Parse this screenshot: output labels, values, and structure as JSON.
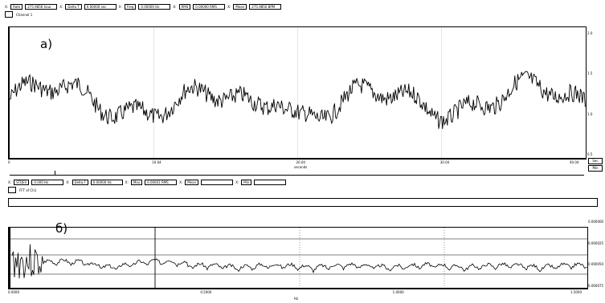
{
  "top_toolbar": {
    "fields": [
      {
        "label": "X:",
        "name": "Rate",
        "value": "275.9856 hour"
      },
      {
        "label": "X:",
        "name": "Delta T",
        "value": "0.00000 sec"
      },
      {
        "label": "X:",
        "name": "Freq",
        "value": "0.00000 Hz"
      },
      {
        "label": "X:",
        "name": "RMS",
        "value": "0.00000 RMS"
      },
      {
        "label": "X:",
        "name": "Mean",
        "value": "275.9856 BPM"
      }
    ],
    "channel_label": "Channel 1"
  },
  "panel_a": {
    "label": "а)",
    "y_ticks": [
      "2.0",
      "1.5",
      "1.0",
      "0.5"
    ],
    "x_ticks": [
      "0",
      "10.04",
      "20.04",
      "30.04",
      "40.04"
    ],
    "x_unit": "seconds",
    "selector": [
      "Sec",
      "Min"
    ]
  },
  "mid_toolbar": {
    "fields": [
      {
        "label": "X:",
        "name": "STDEV",
        "value": "0.000 Hz"
      },
      {
        "label": "X:",
        "name": "Delta F",
        "value": "0.00000 Hz"
      },
      {
        "label": "X:",
        "name": "Max",
        "value": "0.00001 RMS"
      },
      {
        "label": "X:",
        "name": "Mean",
        "value": ""
      },
      {
        "label": "X:",
        "name": "Min",
        "value": ""
      }
    ],
    "channel_label": "FFT of Ch1"
  },
  "panel_b": {
    "label": "б)",
    "y_ticks": [
      "0.000000",
      "0.000025",
      "0.000050",
      "0.000075"
    ],
    "x_ticks": [
      "0.0000",
      "0.5000",
      "1.0000",
      "1.5000"
    ],
    "x_unit": "Hz"
  },
  "colors": {
    "trace": "#000000",
    "grid": "#000000",
    "background": "#ffffff"
  }
}
